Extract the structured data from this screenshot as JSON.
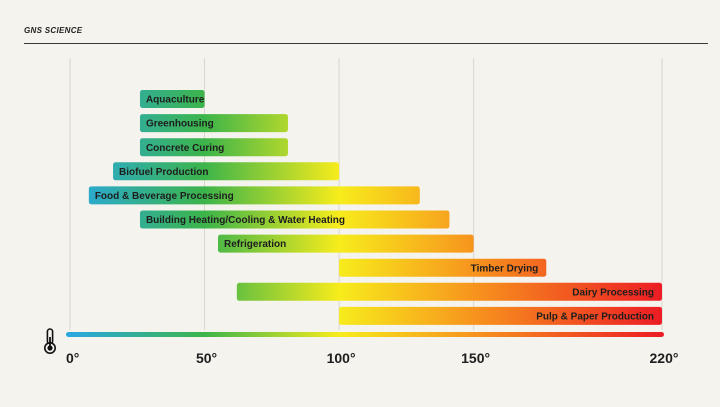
{
  "brand": "GNS SCIENCE",
  "chart_data": {
    "type": "range-bar",
    "title": "",
    "xlabel": "",
    "ylabel": "",
    "xlim": [
      0,
      220
    ],
    "x_ticks": [
      0,
      50,
      100,
      150,
      220
    ],
    "x_tick_labels": [
      "0°",
      "50°",
      "100°",
      "150°",
      "220°"
    ],
    "categories": [
      {
        "label": "Aquaculture",
        "start": 26,
        "end": 50,
        "label_align": "left"
      },
      {
        "label": "Greenhousing",
        "start": 26,
        "end": 81,
        "label_align": "left"
      },
      {
        "label": "Concrete Curing",
        "start": 26,
        "end": 81,
        "label_align": "left"
      },
      {
        "label": "Biofuel Production",
        "start": 16,
        "end": 100,
        "label_align": "left"
      },
      {
        "label": "Food & Beverage Processing",
        "start": 7,
        "end": 130,
        "label_align": "left"
      },
      {
        "label": "Building Heating/Cooling & Water Heating",
        "start": 26,
        "end": 141,
        "label_align": "left"
      },
      {
        "label": "Refrigeration",
        "start": 55,
        "end": 150,
        "label_align": "left"
      },
      {
        "label": "Timber Drying",
        "start": 100,
        "end": 177,
        "label_align": "right"
      },
      {
        "label": "Dairy Processing",
        "start": 62,
        "end": 220,
        "label_align": "right"
      },
      {
        "label": "Pulp & Paper Production",
        "start": 100,
        "end": 220,
        "label_align": "right"
      }
    ],
    "color_scale": [
      {
        "temp": 0,
        "color": "#29a8e0"
      },
      {
        "temp": 50,
        "color": "#3cb44a"
      },
      {
        "temp": 100,
        "color": "#f7ec1c"
      },
      {
        "temp": 150,
        "color": "#f7941d"
      },
      {
        "temp": 220,
        "color": "#ec1c24"
      }
    ],
    "gridlines": true
  }
}
